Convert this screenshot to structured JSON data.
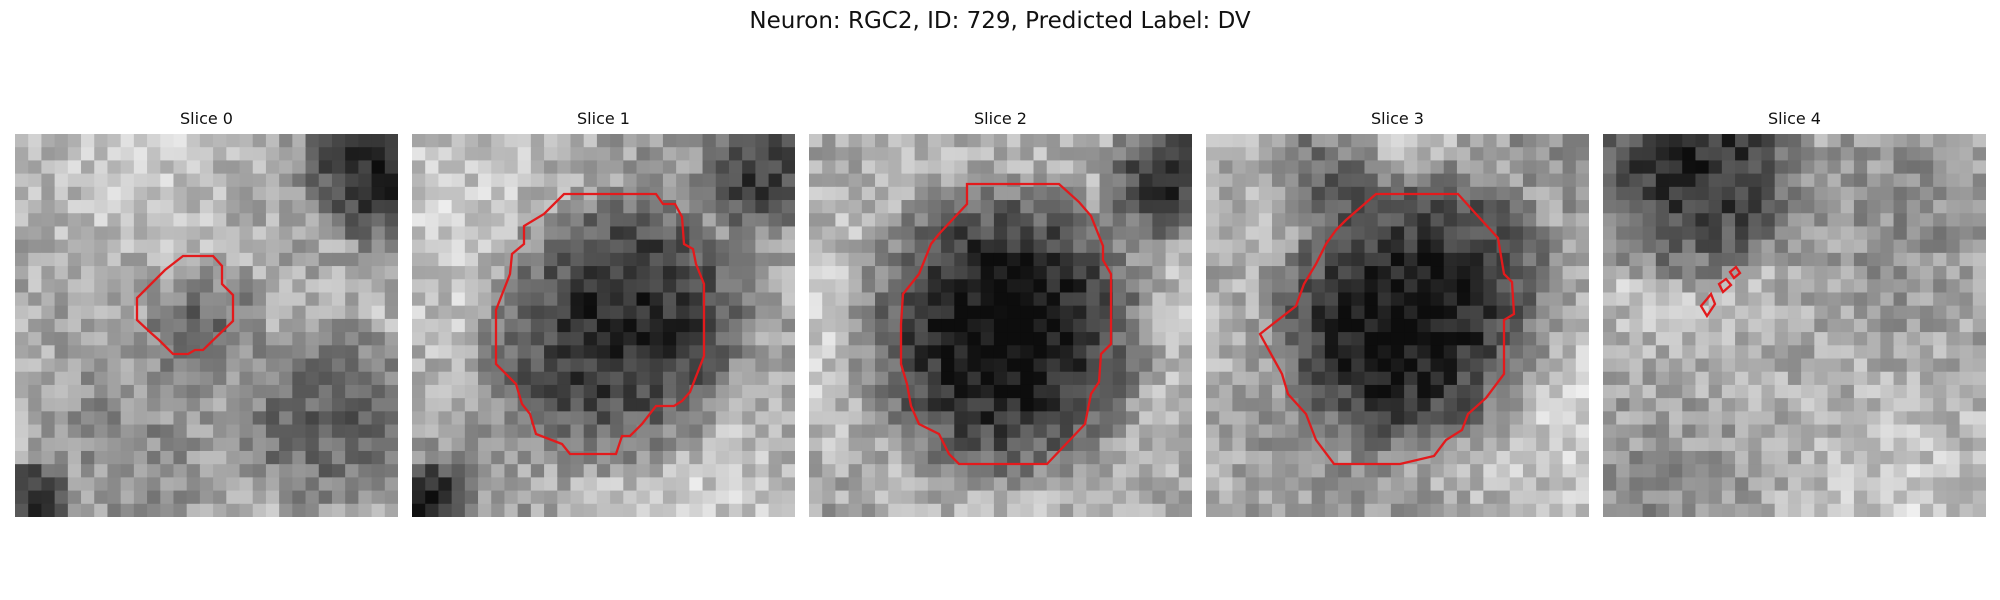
{
  "figure": {
    "title": "Neuron: RGC2, ID: 729, Predicted Label: DV"
  },
  "panels": [
    {
      "title": "Slice 0"
    },
    {
      "title": "Slice 1"
    },
    {
      "title": "Slice 2"
    },
    {
      "title": "Slice 3"
    },
    {
      "title": "Slice 4"
    }
  ],
  "colors": {
    "contour": "#e31a1c",
    "background": "#ffffff"
  }
}
